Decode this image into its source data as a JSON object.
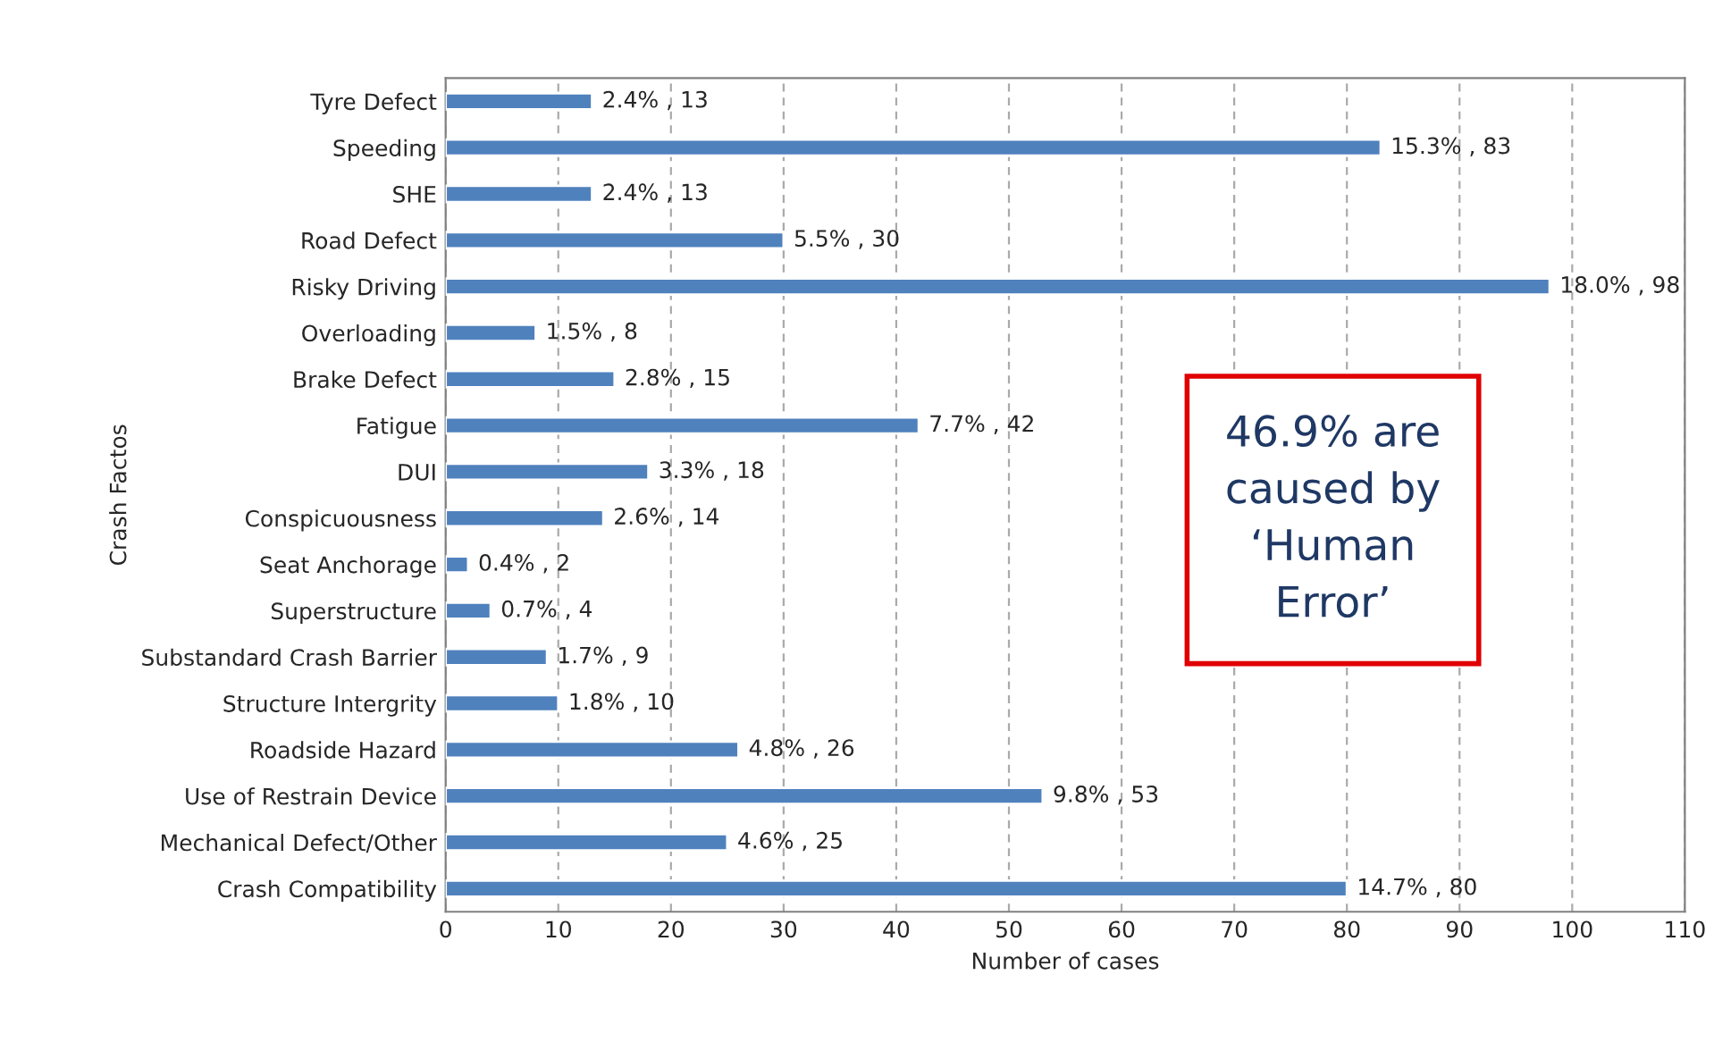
{
  "chart_data": {
    "type": "bar",
    "orientation": "horizontal",
    "categories": [
      "Tyre Defect",
      "Speeding",
      "SHE",
      "Road Defect",
      "Risky Driving",
      "Overloading",
      "Brake Defect",
      "Fatigue",
      "DUI",
      "Conspicuousness",
      "Seat Anchorage",
      "Superstructure",
      "Substandard Crash Barrier",
      "Structure Intergrity",
      "Roadside Hazard",
      "Use of Restrain Device",
      "Mechanical Defect/Other",
      "Crash Compatibility"
    ],
    "values": [
      13,
      83,
      13,
      30,
      98,
      8,
      15,
      42,
      18,
      14,
      2,
      4,
      9,
      10,
      26,
      53,
      25,
      80
    ],
    "value_labels": [
      "2.4% , 13",
      "15.3% , 83",
      "2.4% , 13",
      "5.5% , 30",
      "18.0% , 98",
      "1.5% , 8",
      "2.8% , 15",
      "7.7% , 42",
      "3.3% , 18",
      "2.6% , 14",
      "0.4% , 2",
      "0.7% , 4",
      "1.7% , 9",
      "1.8% , 10",
      "4.8% , 26",
      "9.8% , 53",
      "4.6% , 25",
      "14.7% , 80"
    ],
    "color": "#4f81bd",
    "xlim": [
      0,
      110
    ],
    "xticks": [
      0,
      10,
      20,
      30,
      40,
      50,
      60,
      70,
      80,
      90,
      100,
      110
    ],
    "xlabel": "Number of cases",
    "ylabel": "Crash Factos",
    "grid": "x",
    "legend": false,
    "annotations": [
      "46.9% are\ncaused by\n‘Human\nError’"
    ]
  }
}
